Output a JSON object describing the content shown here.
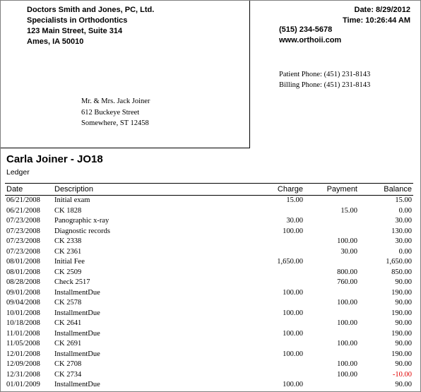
{
  "practice": {
    "name": "Doctors Smith and Jones, PC, Ltd.",
    "specialty": "Specialists in Orthodontics",
    "street": "123 Main Street, Suite 314",
    "city_state_zip": "Ames, IA  50010",
    "phone": "(515) 234-5678",
    "website": "www.orthoii.com"
  },
  "report_meta": {
    "date": "Date: 8/29/2012",
    "time": "Time: 10:26:44 AM"
  },
  "phones": {
    "patient": "Patient Phone: (451) 231-8143",
    "billing": "Billing Phone: (451) 231-8143"
  },
  "addressee": {
    "name": "Mr. & Mrs. Jack Joiner",
    "street": "612 Buckeye Street",
    "city": "Somewhere, ST  12458"
  },
  "patient": {
    "title": "Carla Joiner - JO18",
    "report_type": "Ledger"
  },
  "ledger": {
    "columns": {
      "date": "Date",
      "description": "Description",
      "charge": "Charge",
      "payment": "Payment",
      "balance": "Balance"
    },
    "rows": [
      {
        "date": "06/21/2008",
        "description": "Initial exam",
        "charge": "15.00",
        "payment": "",
        "balance": "15.00",
        "negative": false
      },
      {
        "date": "06/21/2008",
        "description": "CK 1828",
        "charge": "",
        "payment": "15.00",
        "balance": "0.00",
        "negative": false
      },
      {
        "date": "07/23/2008",
        "description": "Panographic x-ray",
        "charge": "30.00",
        "payment": "",
        "balance": "30.00",
        "negative": false
      },
      {
        "date": "07/23/2008",
        "description": "Diagnostic records",
        "charge": "100.00",
        "payment": "",
        "balance": "130.00",
        "negative": false
      },
      {
        "date": "07/23/2008",
        "description": "CK 2338",
        "charge": "",
        "payment": "100.00",
        "balance": "30.00",
        "negative": false
      },
      {
        "date": "07/23/2008",
        "description": "CK 2361",
        "charge": "",
        "payment": "30.00",
        "balance": "0.00",
        "negative": false
      },
      {
        "date": "08/01/2008",
        "description": "Initial Fee",
        "charge": "1,650.00",
        "payment": "",
        "balance": "1,650.00",
        "negative": false
      },
      {
        "date": "08/01/2008",
        "description": "CK 2509",
        "charge": "",
        "payment": "800.00",
        "balance": "850.00",
        "negative": false
      },
      {
        "date": "08/28/2008",
        "description": "Check 2517",
        "charge": "",
        "payment": "760.00",
        "balance": "90.00",
        "negative": false
      },
      {
        "date": "09/01/2008",
        "description": "InstallmentDue",
        "charge": "100.00",
        "payment": "",
        "balance": "190.00",
        "negative": false
      },
      {
        "date": "09/04/2008",
        "description": "CK 2578",
        "charge": "",
        "payment": "100.00",
        "balance": "90.00",
        "negative": false
      },
      {
        "date": "10/01/2008",
        "description": "InstallmentDue",
        "charge": "100.00",
        "payment": "",
        "balance": "190.00",
        "negative": false
      },
      {
        "date": "10/18/2008",
        "description": "CK 2641",
        "charge": "",
        "payment": "100.00",
        "balance": "90.00",
        "negative": false
      },
      {
        "date": "11/01/2008",
        "description": "InstallmentDue",
        "charge": "100.00",
        "payment": "",
        "balance": "190.00",
        "negative": false
      },
      {
        "date": "11/05/2008",
        "description": "CK 2691",
        "charge": "",
        "payment": "100.00",
        "balance": "90.00",
        "negative": false
      },
      {
        "date": "12/01/2008",
        "description": "InstallmentDue",
        "charge": "100.00",
        "payment": "",
        "balance": "190.00",
        "negative": false
      },
      {
        "date": "12/09/2008",
        "description": "CK 2708",
        "charge": "",
        "payment": "100.00",
        "balance": "90.00",
        "negative": false
      },
      {
        "date": "12/31/2008",
        "description": "CK 2734",
        "charge": "",
        "payment": "100.00",
        "balance": "-10.00",
        "negative": true
      },
      {
        "date": "01/01/2009",
        "description": "InstallmentDue",
        "charge": "100.00",
        "payment": "",
        "balance": "90.00",
        "negative": false
      }
    ]
  }
}
